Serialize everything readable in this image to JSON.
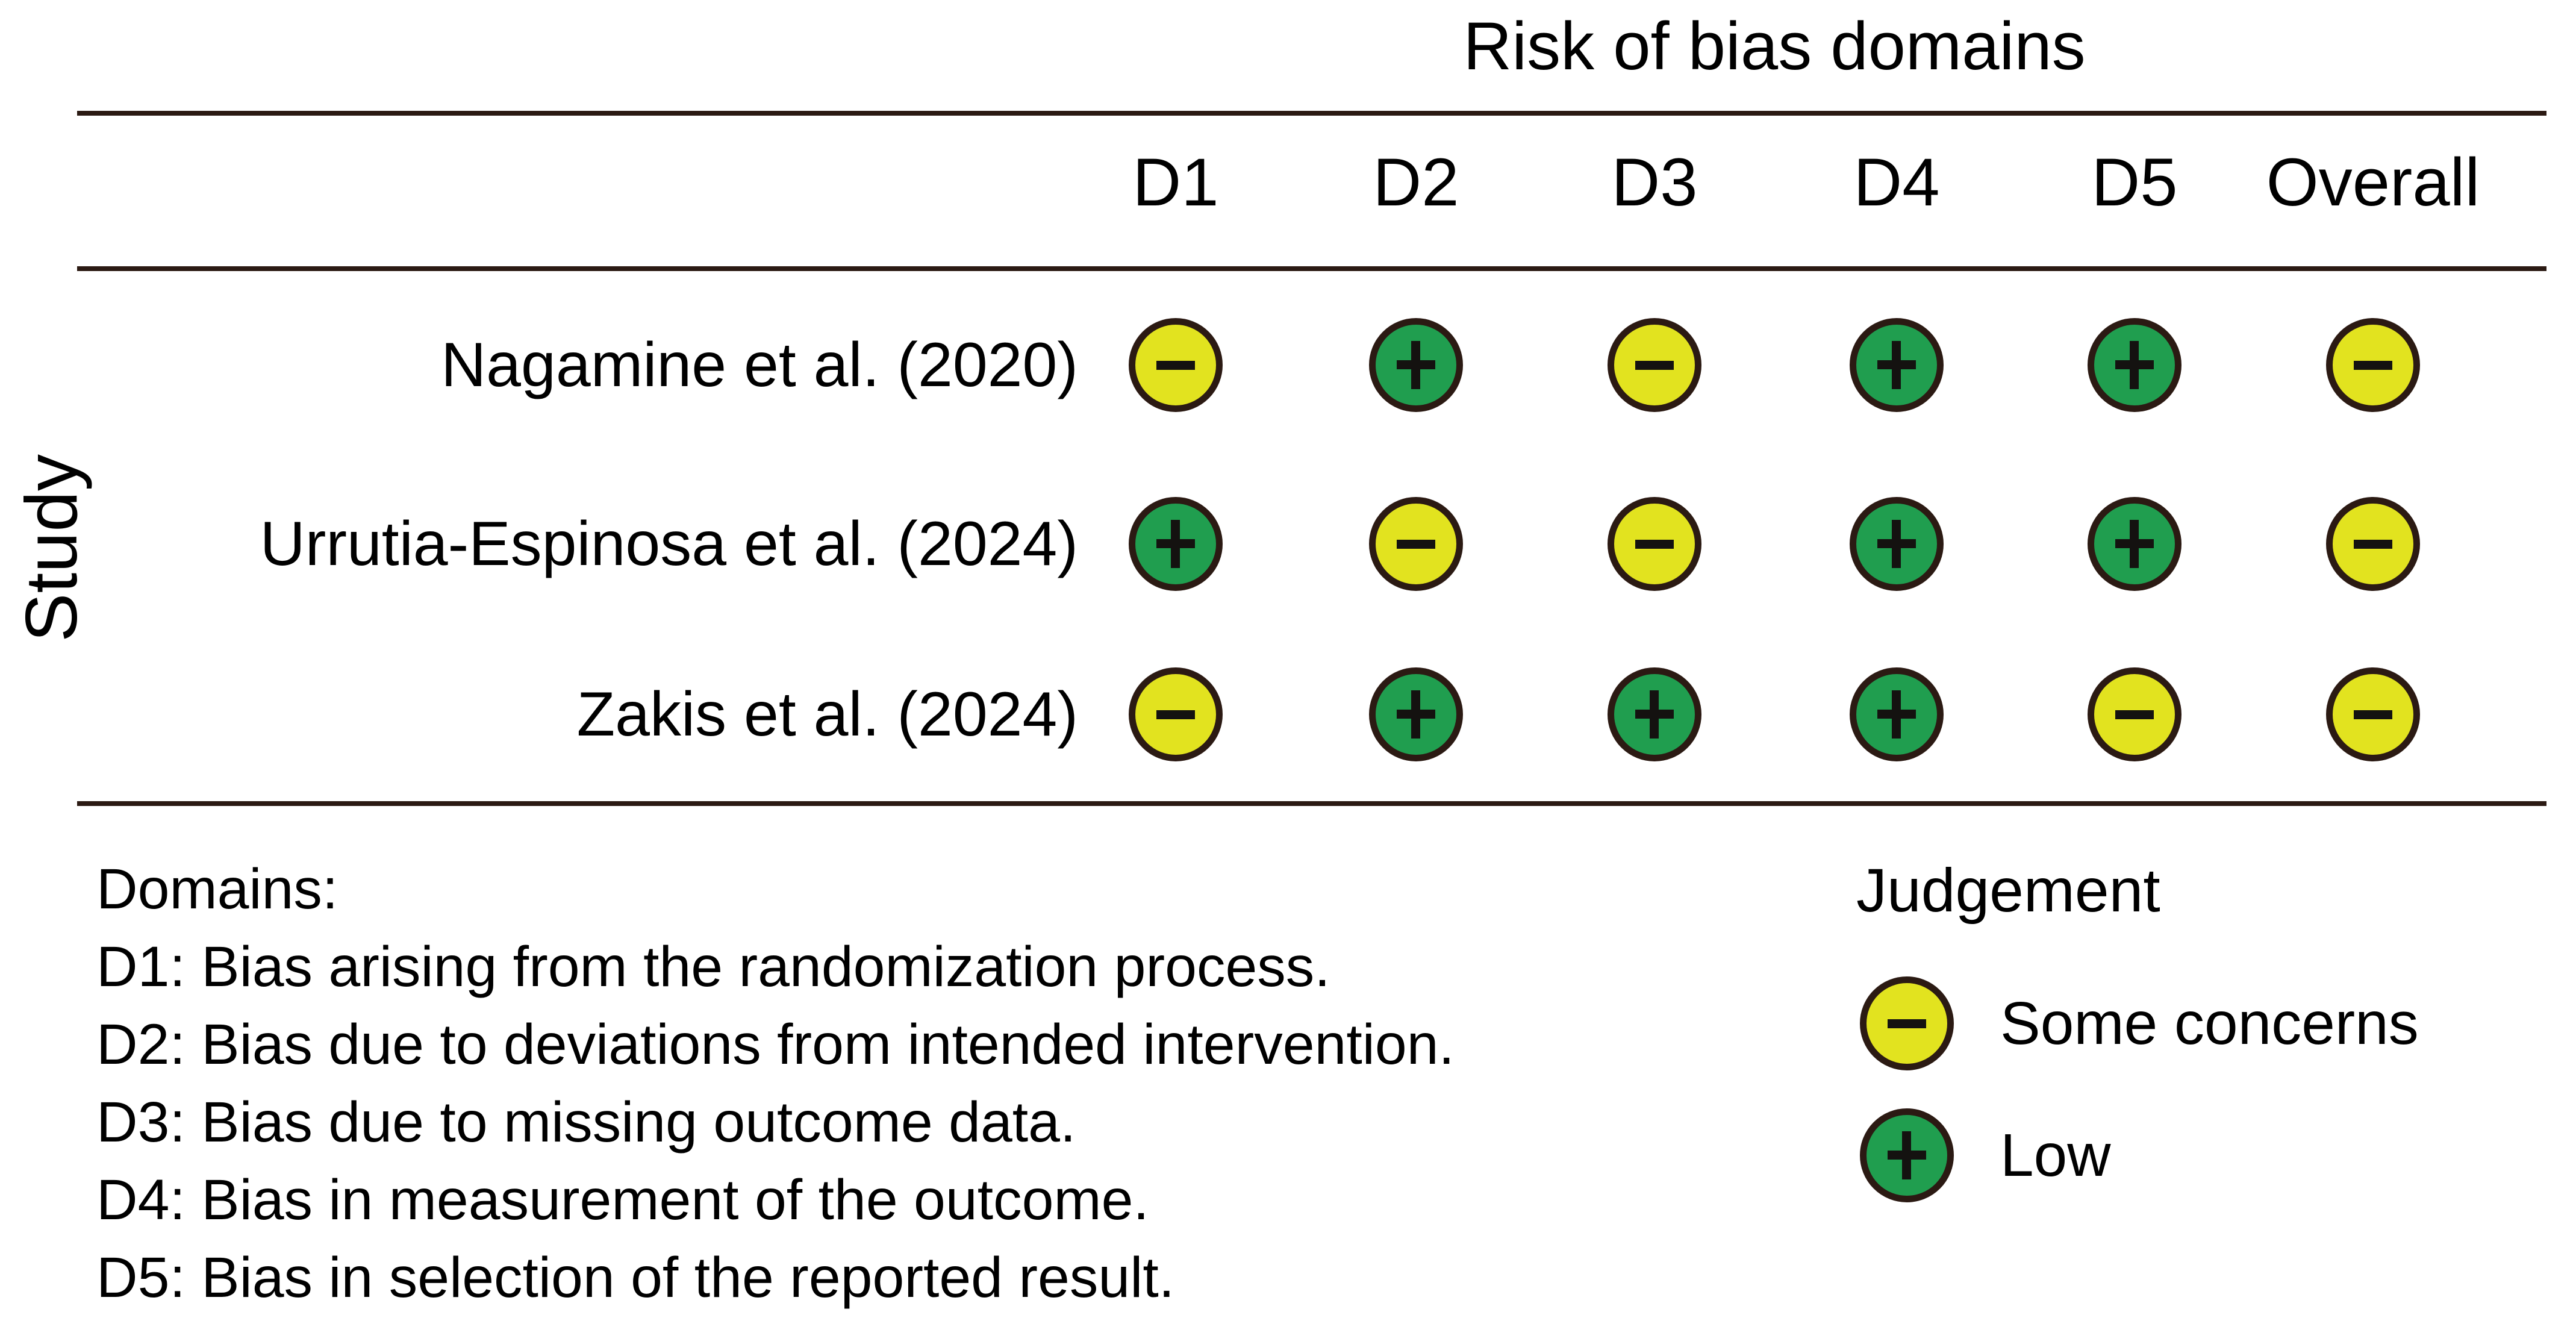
{
  "figure": {
    "background": "#ffffff",
    "line_color": "#2b1a13",
    "text_color": "#000000",
    "symbol_color": "#141210"
  },
  "chart_data": {
    "type": "heatmap",
    "title": "Risk of bias domains",
    "y_axis_label": "Study",
    "columns": [
      "D1",
      "D2",
      "D3",
      "D4",
      "D5",
      "Overall"
    ],
    "rows": [
      {
        "study": "Nagamine et al. (2020)",
        "judgements": [
          "some_concerns",
          "low",
          "some_concerns",
          "low",
          "low",
          "some_concerns"
        ]
      },
      {
        "study": "Urrutia-Espinosa et al. (2024)",
        "judgements": [
          "low",
          "some_concerns",
          "some_concerns",
          "low",
          "low",
          "some_concerns"
        ]
      },
      {
        "study": "Zakis et al. (2024)",
        "judgements": [
          "some_concerns",
          "low",
          "low",
          "low",
          "some_concerns",
          "some_concerns"
        ]
      }
    ],
    "judgement_colors": {
      "some_concerns": "#e2e31f",
      "low": "#209e4f"
    },
    "judgement_symbols": {
      "some_concerns": "minus",
      "low": "plus"
    },
    "legend": {
      "title": "Judgement",
      "entries": [
        {
          "judgement": "some_concerns",
          "symbol": "minus",
          "label": "Some concerns"
        },
        {
          "judgement": "low",
          "symbol": "plus",
          "label": "Low"
        }
      ]
    },
    "footnotes": {
      "heading": "Domains:",
      "lines": [
        "D1: Bias arising from the randomization process.",
        "D2: Bias due to deviations from intended intervention.",
        "D3: Bias due to missing outcome data.",
        "D4: Bias in measurement of the outcome.",
        "D5: Bias in selection of the reported result."
      ]
    }
  }
}
